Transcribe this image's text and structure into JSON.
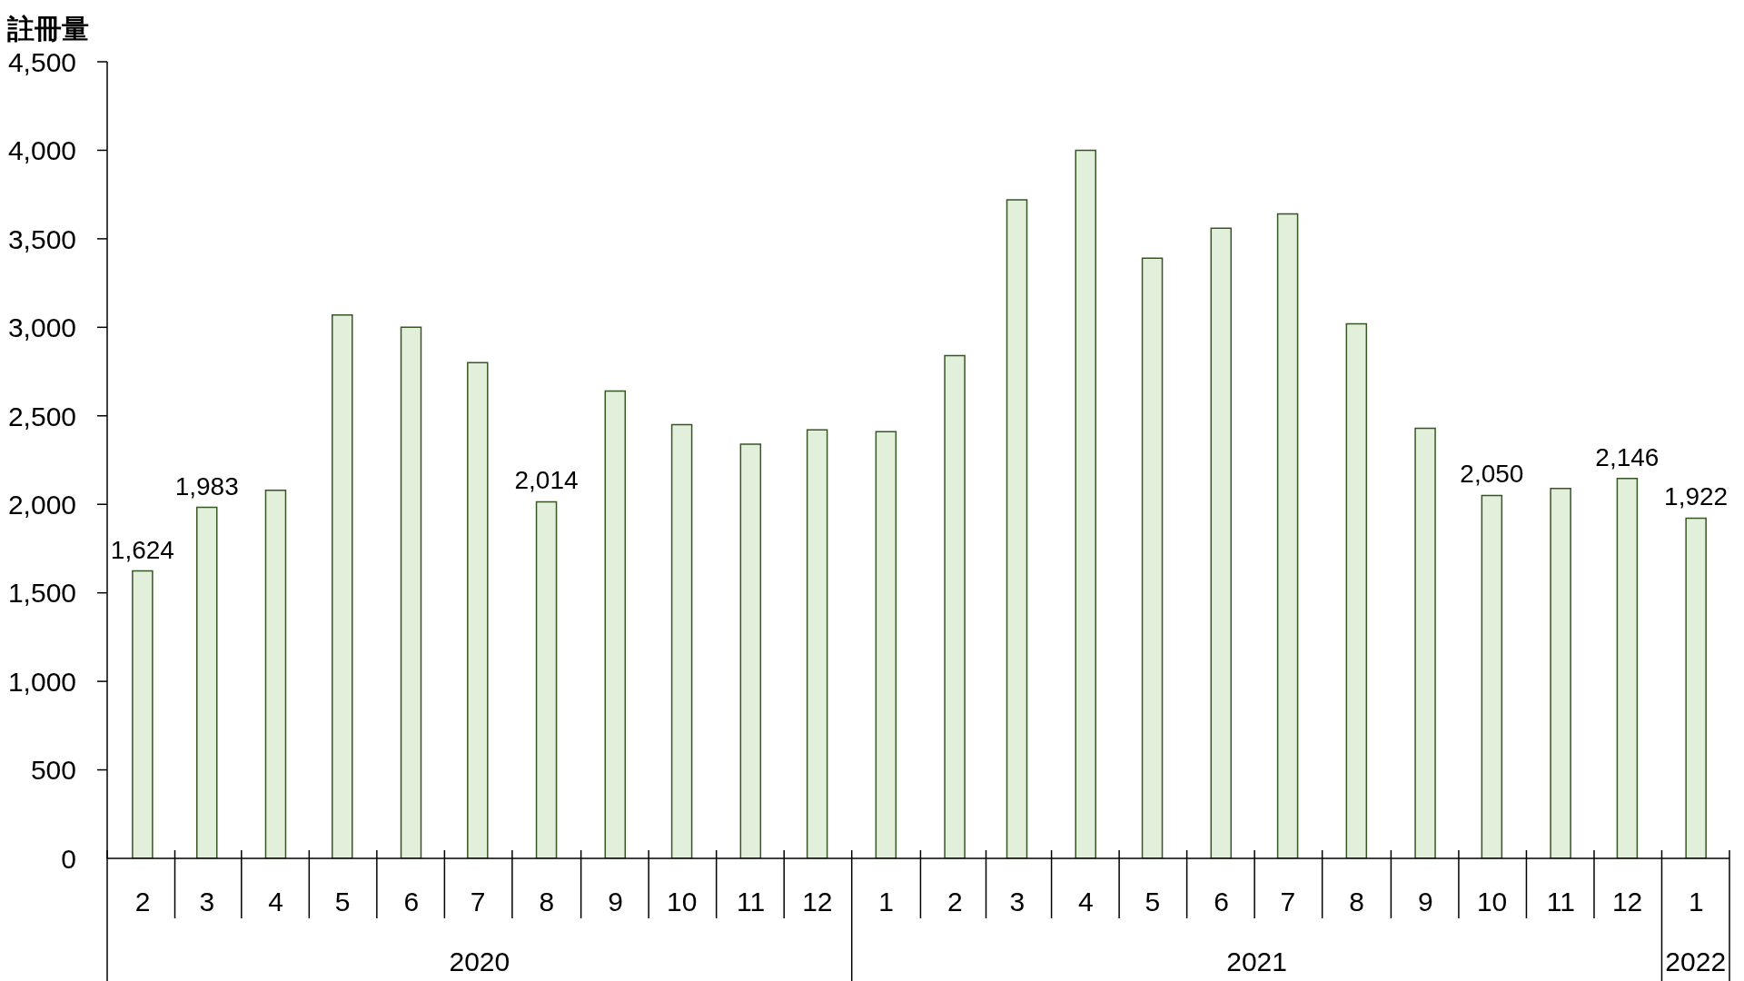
{
  "chart_data": {
    "type": "bar",
    "ylabel": "註冊量",
    "x": [
      "2020-02",
      "2020-03",
      "2020-04",
      "2020-05",
      "2020-06",
      "2020-07",
      "2020-08",
      "2020-09",
      "2020-10",
      "2020-11",
      "2020-12",
      "2021-01",
      "2021-02",
      "2021-03",
      "2021-04",
      "2021-05",
      "2021-06",
      "2021-07",
      "2021-08",
      "2021-09",
      "2021-10",
      "2021-11",
      "2021-12",
      "2022-01"
    ],
    "xlim": [
      "2020-01-16",
      "2022-01-16"
    ],
    "xticks": [
      {
        "value": "2020-02",
        "label": "2"
      },
      {
        "value": "2020-03",
        "label": "3"
      },
      {
        "value": "2020-04",
        "label": "4"
      },
      {
        "value": "2020-05",
        "label": "5"
      },
      {
        "value": "2020-06",
        "label": "6"
      },
      {
        "value": "2020-07",
        "label": "7"
      },
      {
        "value": "2020-08",
        "label": "8"
      },
      {
        "value": "2020-09",
        "label": "9"
      },
      {
        "value": "2020-10",
        "label": "10"
      },
      {
        "value": "2020-11",
        "label": "11"
      },
      {
        "value": "2020-12",
        "label": "12"
      },
      {
        "value": "2021-01",
        "label": "1"
      },
      {
        "value": "2021-02",
        "label": "2"
      },
      {
        "value": "2021-03",
        "label": "3"
      },
      {
        "value": "2021-04",
        "label": "4"
      },
      {
        "value": "2021-05",
        "label": "5"
      },
      {
        "value": "2021-06",
        "label": "6"
      },
      {
        "value": "2021-07",
        "label": "7"
      },
      {
        "value": "2021-08",
        "label": "8"
      },
      {
        "value": "2021-09",
        "label": "9"
      },
      {
        "value": "2021-10",
        "label": "10"
      },
      {
        "value": "2021-11",
        "label": "11"
      },
      {
        "value": "2021-12",
        "label": "12"
      },
      {
        "value": "2022-01",
        "label": "1"
      }
    ],
    "values": [
      1624,
      1983,
      2080,
      3070,
      3000,
      2800,
      2014,
      2640,
      2450,
      2340,
      2420,
      2410,
      2840,
      3720,
      4000,
      3390,
      3560,
      3640,
      3020,
      2430,
      2050,
      2090,
      2146,
      1922
    ],
    "value_labels": [
      "1,624",
      "1,983",
      null,
      null,
      null,
      null,
      "2,014",
      null,
      null,
      null,
      null,
      null,
      null,
      null,
      null,
      null,
      null,
      null,
      null,
      null,
      "2,050",
      null,
      "2,146",
      "1,922"
    ],
    "color": "#e2efda",
    "ylim": [
      0,
      4500
    ],
    "yticks": [
      0,
      500,
      {
        "value": 1000,
        "label": "1,000"
      },
      {
        "value": 1500,
        "label": "1,500"
      },
      {
        "value": 2000,
        "label": "2,000"
      },
      {
        "value": 2500,
        "label": "2,500"
      },
      {
        "value": 3000,
        "label": "3,000"
      },
      {
        "value": 3500,
        "label": "3,500"
      },
      {
        "value": 4000,
        "label": "4,000"
      },
      {
        "value": 4500,
        "label": "4,500"
      }
    ],
    "annotations": [
      "2020",
      "2021",
      "2022"
    ]
  }
}
